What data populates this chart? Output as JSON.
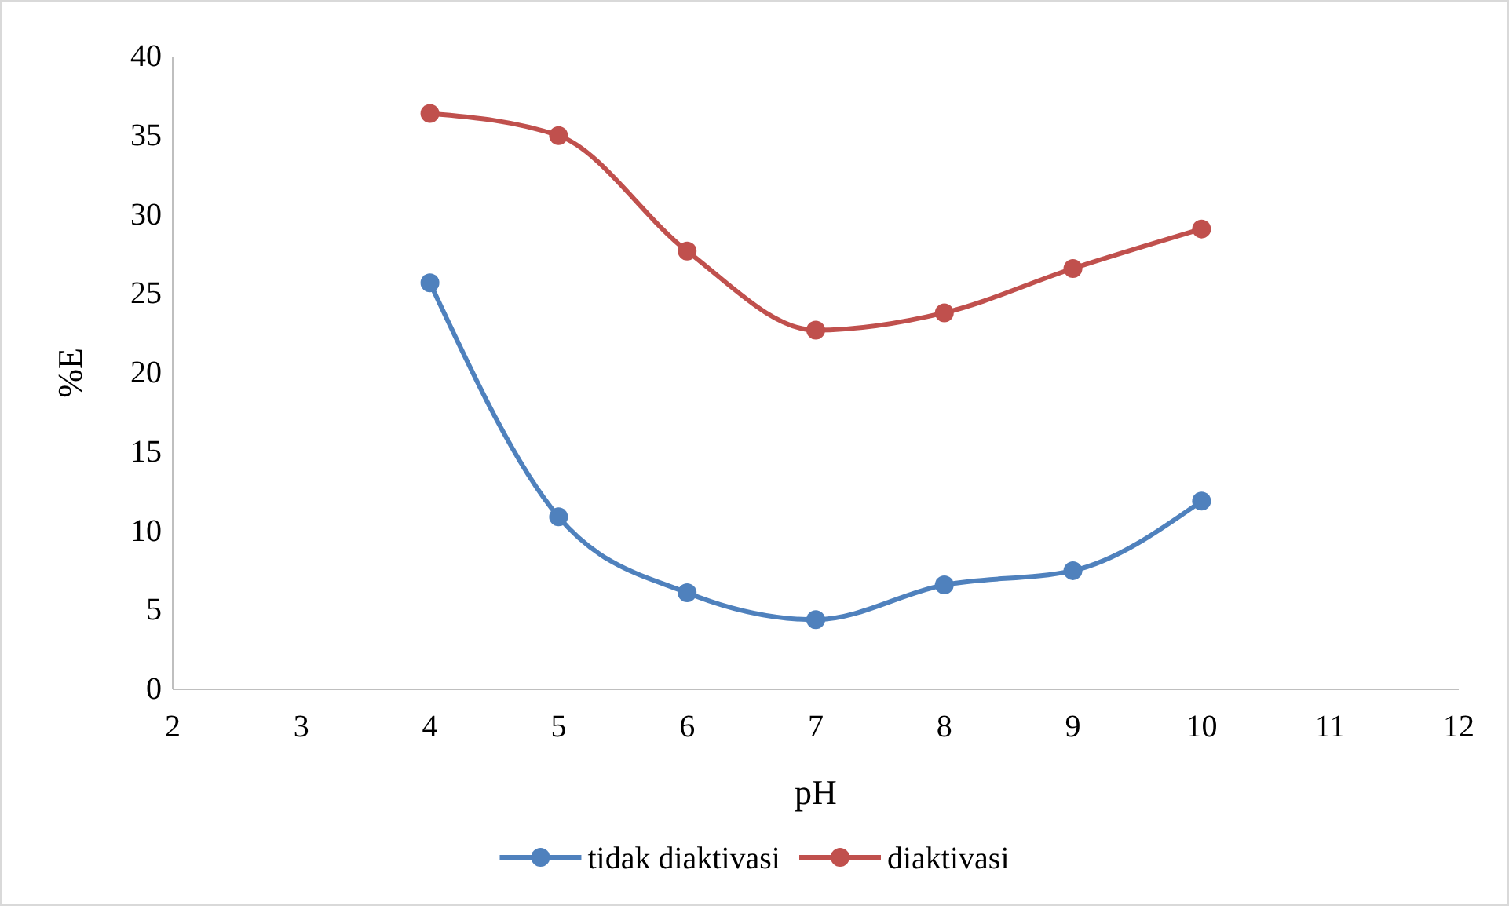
{
  "chart_data": {
    "type": "line",
    "xlabel": "pH",
    "ylabel": "%E",
    "x": [
      4,
      5,
      6,
      7,
      8,
      9,
      10
    ],
    "series": [
      {
        "name": "tidak diaktivasi",
        "color": "#4f81bd",
        "values": [
          25.7,
          10.9,
          6.1,
          4.4,
          6.6,
          7.5,
          11.9
        ]
      },
      {
        "name": "diaktivasi",
        "color": "#c0504d",
        "values": [
          36.4,
          35.0,
          27.7,
          22.7,
          23.8,
          26.6,
          29.1
        ]
      }
    ],
    "xlim": [
      2,
      12
    ],
    "xticks": [
      2,
      3,
      4,
      5,
      6,
      7,
      8,
      9,
      10,
      11,
      12
    ],
    "ylim": [
      0,
      40
    ],
    "yticks": [
      0,
      5,
      10,
      15,
      20,
      25,
      30,
      35,
      40
    ],
    "grid": false,
    "legend": "bottom",
    "marker": "circle",
    "line_style": "solid"
  }
}
